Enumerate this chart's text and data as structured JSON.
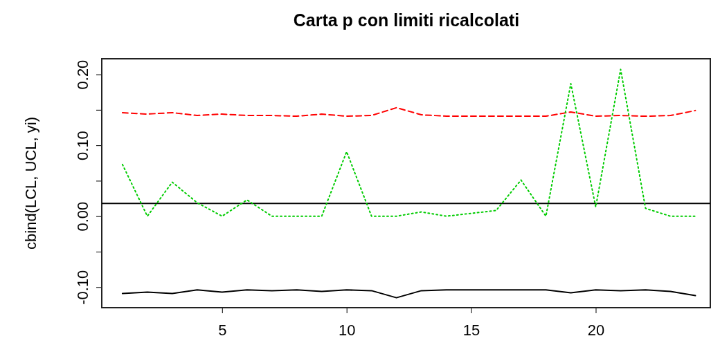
{
  "chart_data": {
    "type": "line",
    "title": "Carta p con limiti ricalcolati",
    "ylabel": "cbind(LCL, UCL, yi)",
    "x": [
      1,
      2,
      3,
      4,
      5,
      6,
      7,
      8,
      9,
      10,
      11,
      12,
      13,
      14,
      15,
      16,
      17,
      18,
      19,
      20,
      21,
      22,
      23,
      24
    ],
    "series": [
      {
        "color": "#000000",
        "line_style": "solid",
        "values": [
          -0.109,
          -0.107,
          -0.109,
          -0.104,
          -0.107,
          -0.104,
          -0.105,
          -0.104,
          -0.106,
          -0.104,
          -0.105,
          -0.115,
          -0.105,
          -0.104,
          -0.104,
          -0.104,
          -0.104,
          -0.104,
          -0.108,
          -0.104,
          -0.105,
          -0.104,
          -0.106,
          -0.112
        ]
      },
      {
        "color": "#ff0000",
        "line_style": "dashed",
        "values": [
          0.146,
          0.144,
          0.146,
          0.142,
          0.144,
          0.142,
          0.142,
          0.141,
          0.144,
          0.141,
          0.142,
          0.153,
          0.143,
          0.141,
          0.141,
          0.141,
          0.141,
          0.141,
          0.147,
          0.141,
          0.142,
          0.141,
          0.142,
          0.149
        ]
      },
      {
        "color": "#00cc00",
        "line_style": "dotted",
        "values": [
          0.073,
          0,
          0.048,
          0.019,
          0,
          0.023,
          0,
          0,
          0,
          0.091,
          0,
          0,
          0.006,
          0,
          0.004,
          0.008,
          0.051,
          0,
          0.187,
          0.013,
          0.207,
          0.011,
          0,
          0
        ]
      }
    ],
    "ref_lines": [
      {
        "axis": "y",
        "value": 0.018,
        "color": "#000000",
        "line_style": "solid"
      }
    ],
    "xlim": [
      0.17,
      24.6
    ],
    "xticks": [
      5,
      10,
      15,
      20
    ],
    "ylim": [
      -0.129,
      0.222
    ],
    "yticks": [
      {
        "value": -0.1,
        "label": "-0.10"
      },
      {
        "value": -0.05,
        "label": null
      },
      {
        "value": 0,
        "label": "0.00"
      },
      {
        "value": 0.05,
        "label": null
      },
      {
        "value": 0.1,
        "label": "0.10"
      },
      {
        "value": 0.15,
        "label": null
      },
      {
        "value": 0.2,
        "label": "0.20"
      }
    ],
    "grid": false,
    "marker": "none"
  }
}
